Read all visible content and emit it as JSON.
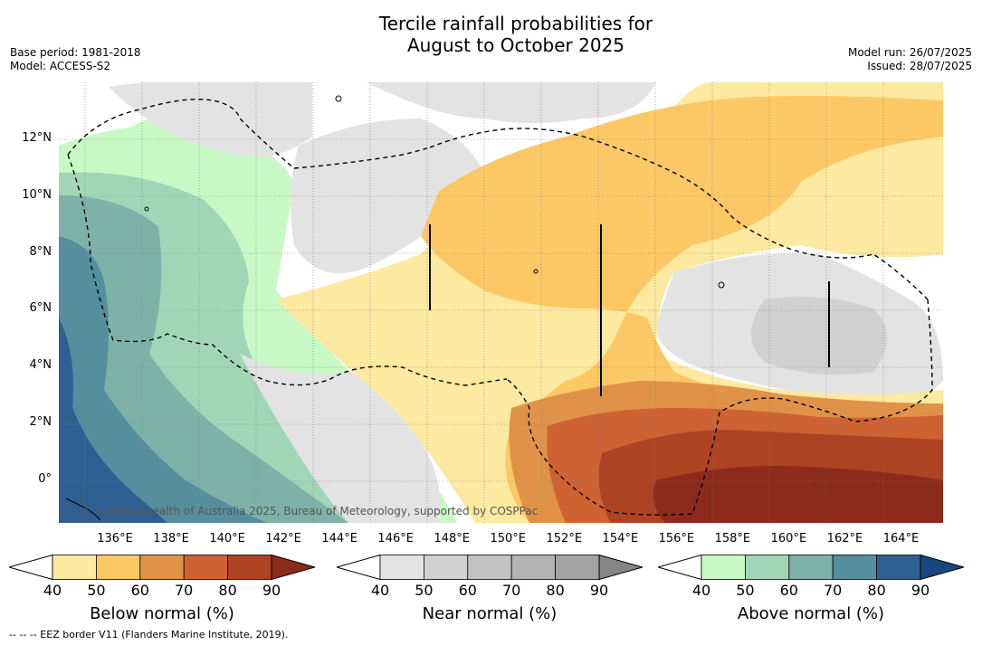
{
  "header": {
    "title_line1": "Tercile rainfall probabilities for",
    "title_line2": "August to October 2025",
    "base_period": "Base period: 1981-2018",
    "model": "Model: ACCESS-S2",
    "model_run": "Model run: 26/07/2025",
    "issued": "Issued: 28/07/2025"
  },
  "map": {
    "copyright": "© Commonwealth of Australia 2025, Bureau of Meteorology, supported by COSPPac",
    "lon_labels": [
      "136°E",
      "138°E",
      "140°E",
      "142°E",
      "144°E",
      "146°E",
      "148°E",
      "150°E",
      "152°E",
      "154°E",
      "156°E",
      "158°E",
      "160°E",
      "162°E",
      "164°E"
    ],
    "lat_labels": [
      "12°N",
      "10°N",
      "8°N",
      "6°N",
      "4°N",
      "2°N",
      "0°"
    ],
    "lon_values": [
      136,
      138,
      140,
      142,
      144,
      146,
      148,
      150,
      152,
      154,
      156,
      158,
      160,
      162,
      164
    ],
    "lat_values": [
      12,
      10,
      8,
      6,
      4,
      2,
      0
    ],
    "lon_range": [
      134.0,
      165.5
    ],
    "lat_range": [
      -1.5,
      14.0
    ]
  },
  "colorbars": [
    {
      "id": "below",
      "title": "Below normal (%)",
      "ticks": [
        "40",
        "50",
        "60",
        "70",
        "80",
        "90"
      ],
      "colors": [
        "#ffffff",
        "#fde9a0",
        "#fcc865",
        "#e09348",
        "#cf6232",
        "#ad4322",
        "#8c2a1c"
      ]
    },
    {
      "id": "near",
      "title": "Near normal (%)",
      "ticks": [
        "40",
        "50",
        "60",
        "70",
        "80",
        "90"
      ],
      "colors": [
        "#ffffff",
        "#e3e3e3",
        "#d1d1d1",
        "#c2c2c2",
        "#b3b3b3",
        "#a3a3a3",
        "#858585"
      ]
    },
    {
      "id": "above",
      "title": "Above normal (%)",
      "ticks": [
        "40",
        "50",
        "60",
        "70",
        "80",
        "90"
      ],
      "colors": [
        "#ffffff",
        "#c8f9c5",
        "#a0d6b6",
        "#7eb2a9",
        "#558f9d",
        "#2f5f92",
        "#18467e"
      ]
    }
  ],
  "footer": "--  --  -- EEZ border V11 (Flanders Marine Institute, 2019)."
}
